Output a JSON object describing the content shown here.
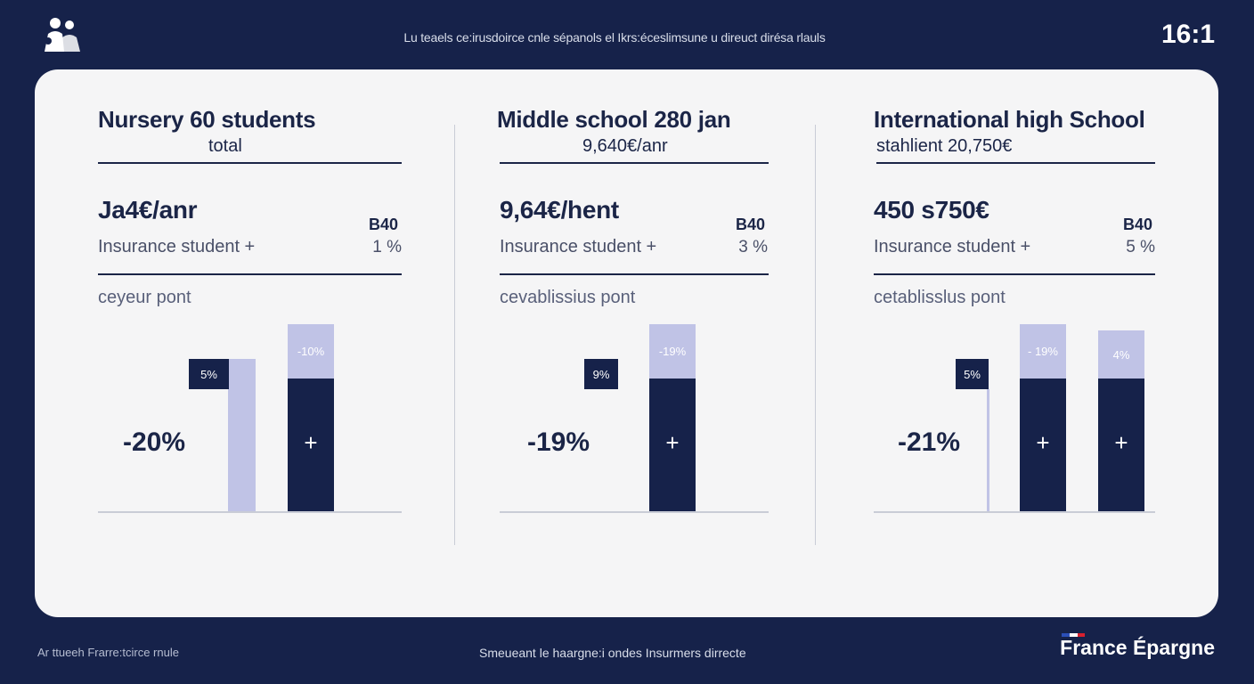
{
  "header": {
    "subtitle": "Lu teaels ce:irusdoirce cnle sépanols el Ikrs:éceslimsune u direuct dirésa rlauls",
    "ratio": "16:1",
    "logo_icon": "family-icon"
  },
  "panels": [
    {
      "title": "Nursery 60 students",
      "subtitle": "total",
      "price": "Ja4€/anr",
      "code": "B40",
      "insurance_label": "Insurance student +",
      "insurance_pct": "1 %",
      "note": "ceyeur pont",
      "big_value": "-20%",
      "tag": "5%",
      "bar_top_label": "-10%",
      "plus": "+"
    },
    {
      "title": "Middle school 280 jan",
      "subtitle": "9,640€/anr",
      "price": "9,64€/hent",
      "code": "B40",
      "insurance_label": "Insurance student +",
      "insurance_pct": "3 %",
      "note": "cevablissius pont",
      "big_value": "-19%",
      "tag": "9%",
      "bar_top_label": "-19%",
      "plus": "+"
    },
    {
      "title": "International high School",
      "subtitle": "stahlient 20,750€",
      "price": "450 s750€",
      "code": "B40",
      "insurance_label": "Insurance student +",
      "insurance_pct": "5 %",
      "note": "cetablisslus pont",
      "big_value": "-21%",
      "tag": "5%",
      "bar_top_labels": [
        "- 19%",
        "4%"
      ],
      "plus": "+"
    }
  ],
  "footer": {
    "left": "Ar ttueeh Frarre:tcirce rnule",
    "middle": "Smeueant le haargne:i ondes Insurmers dirrecte",
    "brand": "France Épargne"
  },
  "colors": {
    "navy": "#16224a",
    "lavender": "#c0c3e6",
    "card": "#f5f5f6"
  },
  "chart_data": [
    {
      "type": "bar",
      "title": "Nursery 60 students",
      "bars": [
        {
          "value": 5,
          "color": "#c0c3e6",
          "label": "5%"
        },
        {
          "value": 6,
          "color": "#16224a",
          "label": "-10%"
        }
      ],
      "annotation": "-20%"
    },
    {
      "type": "bar",
      "title": "Middle school 280 jan",
      "bars": [
        {
          "value": 6,
          "color": "#16224a",
          "label": "-19%"
        }
      ],
      "annotation": "-19%"
    },
    {
      "type": "bar",
      "title": "International high School",
      "bars": [
        {
          "value": 6,
          "color": "#16224a",
          "label": "- 19%"
        },
        {
          "value": 6,
          "color": "#16224a",
          "label": "4%"
        }
      ],
      "annotation": "-21%"
    }
  ]
}
